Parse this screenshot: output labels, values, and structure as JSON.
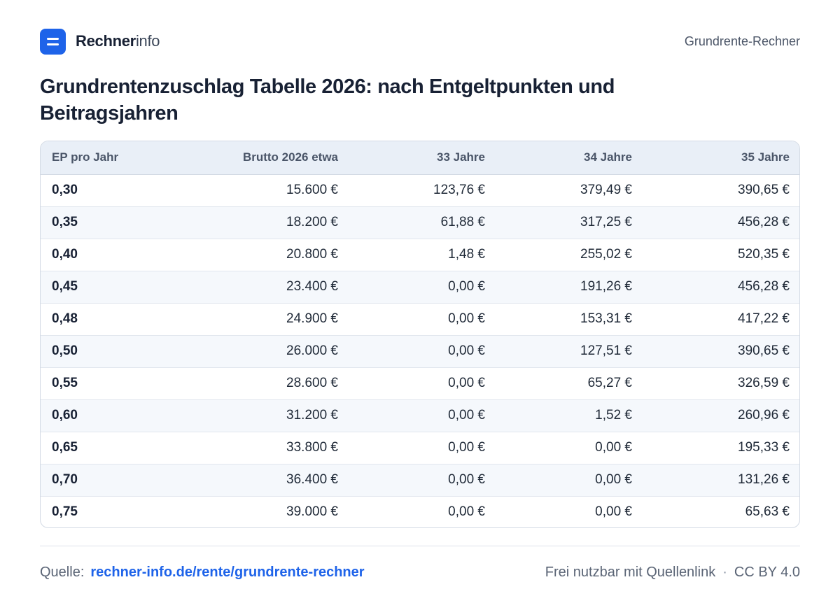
{
  "brand": {
    "name_bold": "Rechner",
    "name_light": "info"
  },
  "header": {
    "link_label": "Grundrente-Rechner"
  },
  "title": "Grundrentenzuschlag Tabelle 2026: nach Entgeltpunkten und Beitragsjahren",
  "table": {
    "columns": [
      "EP pro Jahr",
      "Brutto 2026 etwa",
      "33 Jahre",
      "34 Jahre",
      "35 Jahre"
    ],
    "rows": [
      [
        "0,30",
        "15.600 €",
        "123,76 €",
        "379,49 €",
        "390,65 €"
      ],
      [
        "0,35",
        "18.200 €",
        "61,88 €",
        "317,25 €",
        "456,28 €"
      ],
      [
        "0,40",
        "20.800 €",
        "1,48 €",
        "255,02 €",
        "520,35 €"
      ],
      [
        "0,45",
        "23.400 €",
        "0,00 €",
        "191,26 €",
        "456,28 €"
      ],
      [
        "0,48",
        "24.900 €",
        "0,00 €",
        "153,31 €",
        "417,22 €"
      ],
      [
        "0,50",
        "26.000 €",
        "0,00 €",
        "127,51 €",
        "390,65 €"
      ],
      [
        "0,55",
        "28.600 €",
        "0,00 €",
        "65,27 €",
        "326,59 €"
      ],
      [
        "0,60",
        "31.200 €",
        "0,00 €",
        "1,52 €",
        "260,96 €"
      ],
      [
        "0,65",
        "33.800 €",
        "0,00 €",
        "0,00 €",
        "195,33 €"
      ],
      [
        "0,70",
        "36.400 €",
        "0,00 €",
        "0,00 €",
        "131,26 €"
      ],
      [
        "0,75",
        "39.000 €",
        "0,00 €",
        "0,00 €",
        "65,63 €"
      ]
    ]
  },
  "footer": {
    "source_label": "Quelle:",
    "source_link": "rechner-info.de/rente/grundrente-rechner",
    "license_text": "Frei nutzbar mit Quellenlink",
    "separator": "·",
    "license_code": "CC BY 4.0"
  },
  "colors": {
    "accent": "#1e63e9",
    "header_row": "#e9eff7",
    "alt_row": "#f5f8fc"
  }
}
